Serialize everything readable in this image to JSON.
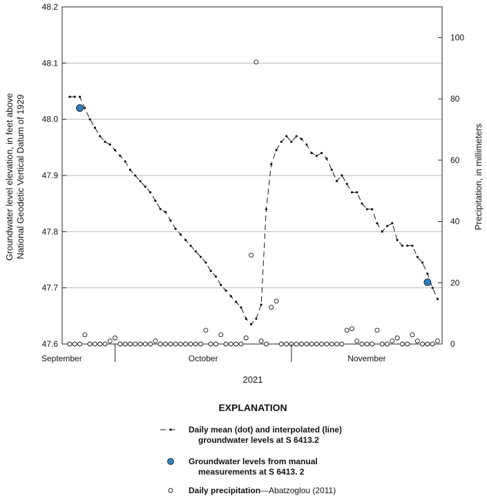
{
  "chart_data": {
    "type": "line",
    "ylabel_left": [
      "Groundwater level elevation, in feet above",
      "National Geodetic Vertical Datum of 1929"
    ],
    "ylabel_right": "Precipitation, in millimeters",
    "xlabel": "2021",
    "month_labels": [
      "September",
      "October",
      "November"
    ],
    "ylim_left": [
      47.6,
      48.2
    ],
    "yticks_left": [
      "47.6",
      "47.7",
      "47.8",
      "47.9",
      "48.0",
      "48.1",
      "48.2"
    ],
    "ylim_right": [
      0,
      110
    ],
    "yticks_right": [
      "0",
      "20",
      "40",
      "60",
      "80",
      "100"
    ],
    "grid": true,
    "x_range_days": [
      "2021-09-23",
      "2021-11-30"
    ],
    "series": [
      {
        "name": "Daily mean (dot) and interpolated (line) groundwater levels at S 6413.2",
        "kind": "groundwater_daily",
        "points": [
          [
            "2021-09-24",
            48.04
          ],
          [
            "2021-09-25",
            48.04
          ],
          [
            "2021-09-26",
            48.04
          ],
          [
            "2021-09-27",
            48.02
          ],
          [
            "2021-09-28",
            48.0
          ],
          [
            "2021-09-29",
            47.985
          ],
          [
            "2021-09-30",
            47.97
          ],
          [
            "2021-10-01",
            47.96
          ],
          [
            "2021-10-02",
            47.955
          ],
          [
            "2021-10-03",
            47.945
          ],
          [
            "2021-10-04",
            47.935
          ],
          [
            "2021-10-05",
            47.925
          ],
          [
            "2021-10-06",
            47.91
          ],
          [
            "2021-10-07",
            47.9
          ],
          [
            "2021-10-08",
            47.89
          ],
          [
            "2021-10-09",
            47.88
          ],
          [
            "2021-10-10",
            47.87
          ],
          [
            "2021-10-11",
            47.855
          ],
          [
            "2021-10-12",
            47.84
          ],
          [
            "2021-10-13",
            47.835
          ],
          [
            "2021-10-14",
            47.82
          ],
          [
            "2021-10-15",
            47.805
          ],
          [
            "2021-10-16",
            47.795
          ],
          [
            "2021-10-17",
            47.785
          ],
          [
            "2021-10-18",
            47.775
          ],
          [
            "2021-10-19",
            47.765
          ],
          [
            "2021-10-20",
            47.755
          ],
          [
            "2021-10-21",
            47.745
          ],
          [
            "2021-10-22",
            47.73
          ],
          [
            "2021-10-23",
            47.72
          ],
          [
            "2021-10-24",
            47.705
          ],
          [
            "2021-10-25",
            47.695
          ],
          [
            "2021-10-26",
            47.685
          ],
          [
            "2021-10-27",
            47.675
          ],
          [
            "2021-10-28",
            47.665
          ],
          [
            "2021-10-29",
            47.645
          ],
          [
            "2021-10-30",
            47.635
          ],
          [
            "2021-10-31",
            47.645
          ],
          [
            "2021-11-01",
            47.67
          ],
          [
            "2021-11-02",
            47.84
          ],
          [
            "2021-11-03",
            47.92
          ],
          [
            "2021-11-04",
            47.945
          ],
          [
            "2021-11-05",
            47.96
          ],
          [
            "2021-11-06",
            47.97
          ],
          [
            "2021-11-07",
            47.96
          ],
          [
            "2021-11-08",
            47.97
          ],
          [
            "2021-11-09",
            47.965
          ],
          [
            "2021-11-10",
            47.955
          ],
          [
            "2021-11-11",
            47.94
          ],
          [
            "2021-11-12",
            47.935
          ],
          [
            "2021-11-13",
            47.94
          ],
          [
            "2021-11-14",
            47.93
          ],
          [
            "2021-11-15",
            47.91
          ],
          [
            "2021-11-16",
            47.89
          ],
          [
            "2021-11-17",
            47.9
          ],
          [
            "2021-11-18",
            47.885
          ],
          [
            "2021-11-19",
            47.87
          ],
          [
            "2021-11-20",
            47.87
          ],
          [
            "2021-11-21",
            47.85
          ],
          [
            "2021-11-22",
            47.84
          ],
          [
            "2021-11-23",
            47.84
          ],
          [
            "2021-11-24",
            47.815
          ],
          [
            "2021-11-25",
            47.8
          ],
          [
            "2021-11-26",
            47.81
          ],
          [
            "2021-11-27",
            47.815
          ],
          [
            "2021-11-28",
            47.785
          ],
          [
            "2021-11-29",
            47.775
          ],
          [
            "2021-11-30",
            47.775
          ],
          [
            "2021-12-01",
            47.775
          ],
          [
            "2021-12-02",
            47.755
          ],
          [
            "2021-12-03",
            47.745
          ],
          [
            "2021-12-04",
            47.725
          ],
          [
            "2021-12-05",
            47.7
          ],
          [
            "2021-12-06",
            47.68
          ]
        ]
      },
      {
        "name": "Groundwater levels from manual measurements at S 6413. 2",
        "kind": "groundwater_manual",
        "points": [
          [
            "2021-09-26",
            48.02
          ],
          [
            "2021-12-04",
            47.71
          ]
        ]
      },
      {
        "name": "Daily precipitation—Abatzoglou (2011)",
        "kind": "precipitation",
        "points": [
          [
            "2021-09-24",
            0
          ],
          [
            "2021-09-25",
            0
          ],
          [
            "2021-09-26",
            0
          ],
          [
            "2021-09-27",
            3
          ],
          [
            "2021-09-28",
            0
          ],
          [
            "2021-09-29",
            0
          ],
          [
            "2021-09-30",
            0
          ],
          [
            "2021-10-01",
            0
          ],
          [
            "2021-10-02",
            1
          ],
          [
            "2021-10-03",
            2
          ],
          [
            "2021-10-04",
            0
          ],
          [
            "2021-10-05",
            0
          ],
          [
            "2021-10-06",
            0
          ],
          [
            "2021-10-07",
            0
          ],
          [
            "2021-10-08",
            0
          ],
          [
            "2021-10-09",
            0
          ],
          [
            "2021-10-10",
            0
          ],
          [
            "2021-10-11",
            1
          ],
          [
            "2021-10-12",
            0
          ],
          [
            "2021-10-13",
            0
          ],
          [
            "2021-10-14",
            0
          ],
          [
            "2021-10-15",
            0
          ],
          [
            "2021-10-16",
            0
          ],
          [
            "2021-10-17",
            0
          ],
          [
            "2021-10-18",
            0
          ],
          [
            "2021-10-19",
            0
          ],
          [
            "2021-10-20",
            0
          ],
          [
            "2021-10-21",
            4.5
          ],
          [
            "2021-10-22",
            0
          ],
          [
            "2021-10-23",
            0
          ],
          [
            "2021-10-24",
            3
          ],
          [
            "2021-10-25",
            0
          ],
          [
            "2021-10-26",
            0
          ],
          [
            "2021-10-27",
            0
          ],
          [
            "2021-10-28",
            0
          ],
          [
            "2021-10-29",
            2
          ],
          [
            "2021-10-30",
            29
          ],
          [
            "2021-10-31",
            92
          ],
          [
            "2021-11-01",
            1
          ],
          [
            "2021-11-02",
            0
          ],
          [
            "2021-11-03",
            12
          ],
          [
            "2021-11-04",
            14
          ],
          [
            "2021-11-05",
            0
          ],
          [
            "2021-11-06",
            0
          ],
          [
            "2021-11-07",
            0
          ],
          [
            "2021-11-08",
            0
          ],
          [
            "2021-11-09",
            0
          ],
          [
            "2021-11-10",
            0
          ],
          [
            "2021-11-11",
            0
          ],
          [
            "2021-11-12",
            0
          ],
          [
            "2021-11-13",
            0
          ],
          [
            "2021-11-14",
            0
          ],
          [
            "2021-11-15",
            0
          ],
          [
            "2021-11-16",
            0
          ],
          [
            "2021-11-17",
            0
          ],
          [
            "2021-11-18",
            4.5
          ],
          [
            "2021-11-19",
            5
          ],
          [
            "2021-11-20",
            1
          ],
          [
            "2021-11-21",
            0
          ],
          [
            "2021-11-22",
            0
          ],
          [
            "2021-11-23",
            0
          ],
          [
            "2021-11-24",
            4.5
          ],
          [
            "2021-11-25",
            0
          ],
          [
            "2021-11-26",
            0
          ],
          [
            "2021-11-27",
            1
          ],
          [
            "2021-11-28",
            2
          ],
          [
            "2021-11-29",
            0
          ],
          [
            "2021-11-30",
            0
          ],
          [
            "2021-12-01",
            3
          ],
          [
            "2021-12-02",
            1
          ],
          [
            "2021-12-03",
            0
          ],
          [
            "2021-12-04",
            0
          ],
          [
            "2021-12-05",
            0
          ],
          [
            "2021-12-06",
            1
          ]
        ]
      }
    ],
    "legend": {
      "title": "EXPLANATION",
      "placement": "bottom-center",
      "items": [
        {
          "kind": "groundwater_daily",
          "bold": [
            "Daily mean (dot) and interpolated (line)",
            "groundwater levels at S 6413.2"
          ],
          "normal": ""
        },
        {
          "kind": "groundwater_manual",
          "bold": [
            "Groundwater levels from manual",
            "measurements at S 6413. 2"
          ],
          "normal": ""
        },
        {
          "kind": "precipitation",
          "bold": [
            "Daily precipitation"
          ],
          "normal": "—Abatzoglou (2011)"
        }
      ]
    },
    "colors": {
      "manual_fill": "#2f7fc1",
      "grid": "#b8b8b8",
      "axis": "#222222",
      "line": "#111111"
    }
  }
}
